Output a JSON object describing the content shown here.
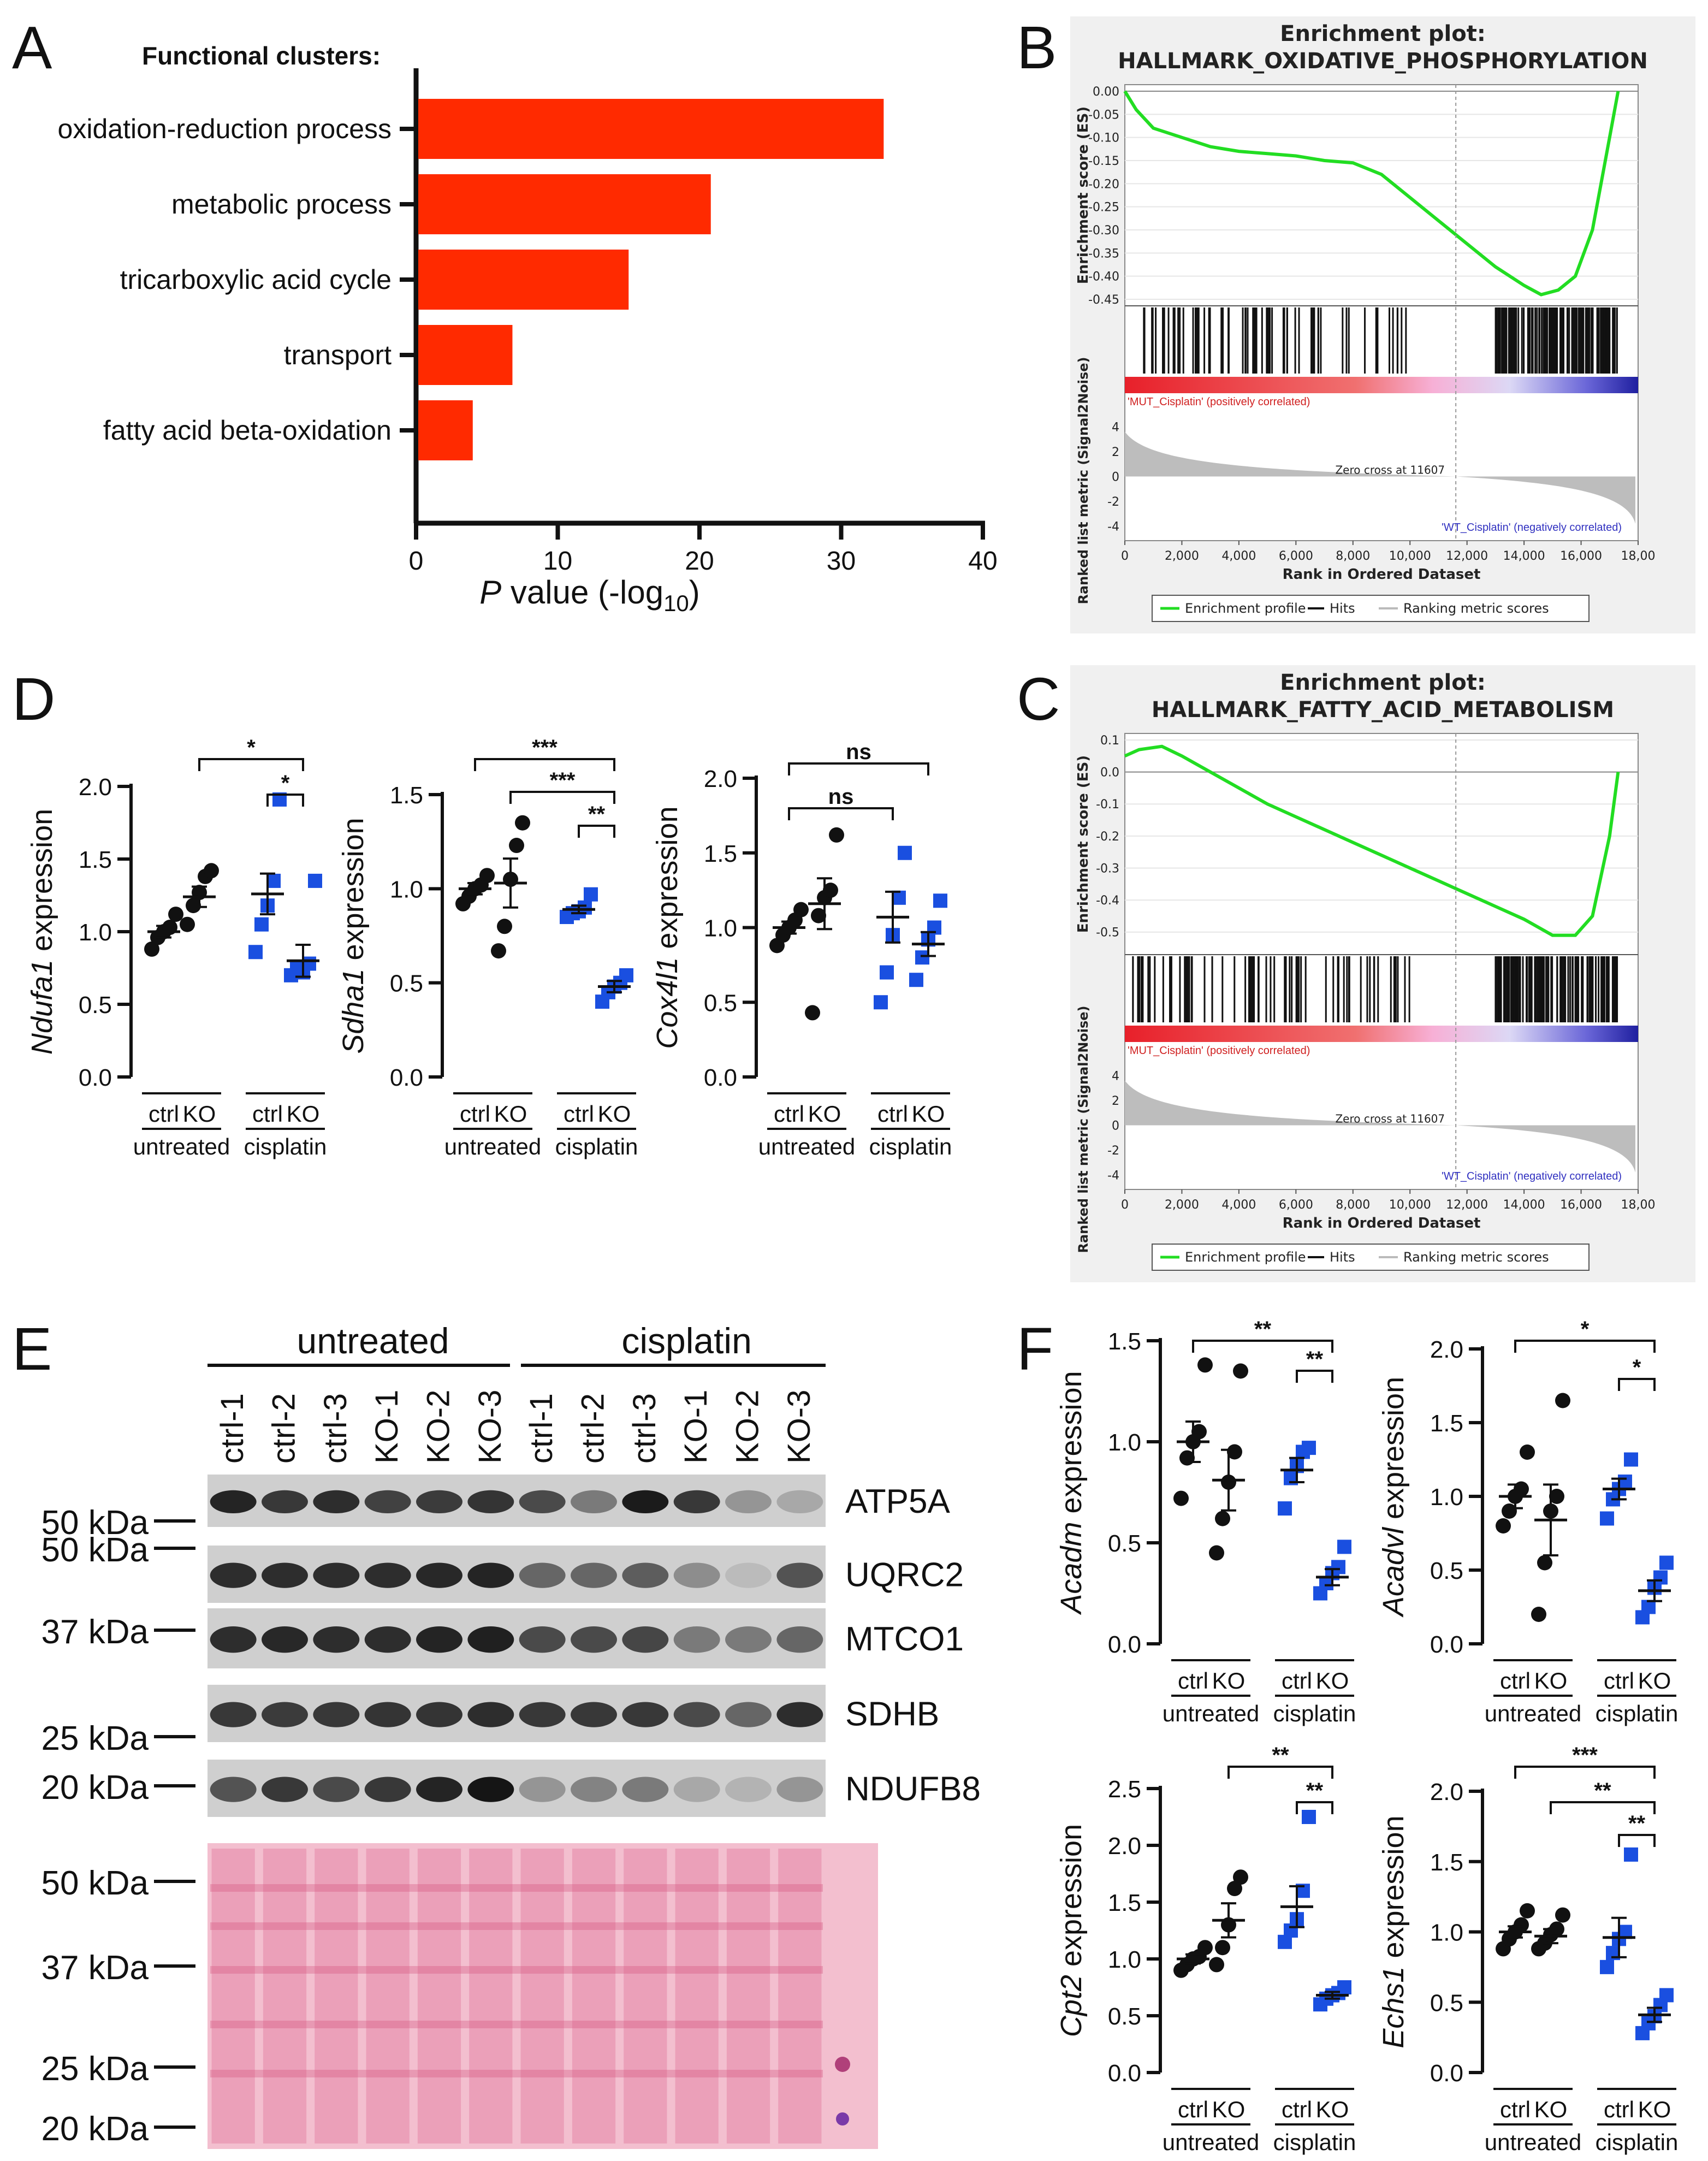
{
  "panels": {
    "a": "A",
    "b": "B",
    "c": "C",
    "d": "D",
    "e": "E",
    "f": "F"
  },
  "colors": {
    "bar": "#ff2a00",
    "ctrl": "#111111",
    "ko": "#1a4fe0",
    "gsea_curve": "#22dd22",
    "ponceau": "#f3bfcf"
  },
  "panel_a": {
    "header": "Functional clusters:",
    "xlabel_p": "P",
    "xlabel_rest": " value (-log",
    "xlabel_sub": "10",
    "xlabel_close": ")"
  },
  "panel_d": {
    "group_labels": [
      "ctrl",
      "KO",
      "ctrl",
      "KO"
    ],
    "treatments": [
      "untreated",
      "cisplatin"
    ]
  },
  "gsea": [
    {
      "title_line1": "Enrichment plot:",
      "title_line2": "HALLMARK_OXIDATIVE_PHOSPHORYLATION",
      "es_label": "Enrichment score (ES)",
      "metric_label": "Ranked list metric (Signal2Noise)",
      "rank_label": "Rank in Ordered Dataset",
      "pos_label": "'MUT_Cisplatin' (positively correlated)",
      "neg_label": "'WT_Cisplatin' (negatively correlated)",
      "zero_cross": "Zero cross at 11607",
      "legend": [
        "Enrichment profile",
        "Hits",
        "Ranking metric scores"
      ],
      "es_ticks": [
        "0.00",
        "-0.05",
        "-0.10",
        "-0.15",
        "-0.20",
        "-0.25",
        "-0.30",
        "-0.35",
        "-0.40",
        "-0.45"
      ],
      "metric_ticks": [
        "4",
        "2",
        "0",
        "-2",
        "-4"
      ],
      "rank_ticks": [
        "0",
        "2,000",
        "4,000",
        "6,000",
        "8,000",
        "10,000",
        "12,000",
        "14,000",
        "16,000",
        "18,00"
      ]
    },
    {
      "title_line1": "Enrichment plot:",
      "title_line2": "HALLMARK_FATTY_ACID_METABOLISM",
      "es_label": "Enrichment score (ES)",
      "metric_label": "Ranked list metric (Signal2Noise)",
      "rank_label": "Rank in Ordered Dataset",
      "pos_label": "'MUT_Cisplatin' (positively correlated)",
      "neg_label": "'WT_Cisplatin' (negatively correlated)",
      "zero_cross": "Zero cross at 11607",
      "legend": [
        "Enrichment profile",
        "Hits",
        "Ranking metric scores"
      ],
      "es_ticks": [
        "0.1",
        "0.0",
        "-0.1",
        "-0.2",
        "-0.3",
        "-0.4",
        "-0.5"
      ],
      "metric_ticks": [
        "4",
        "2",
        "0",
        "-2",
        "-4"
      ],
      "rank_ticks": [
        "0",
        "2,000",
        "4,000",
        "6,000",
        "8,000",
        "10,000",
        "12,000",
        "14,000",
        "16,000",
        "18,00"
      ]
    }
  ],
  "western": {
    "treatments": [
      "untreated",
      "cisplatin"
    ],
    "lanes": [
      "ctrl-1",
      "ctrl-2",
      "ctrl-3",
      "KO-1",
      "KO-2",
      "KO-3",
      "ctrl-1",
      "ctrl-2",
      "ctrl-3",
      "KO-1",
      "KO-2",
      "KO-3"
    ],
    "proteins": [
      "ATP5A",
      "UQRC2",
      "MTCO1",
      "SDHB",
      "NDUFB8"
    ],
    "blot_markers": [
      "50 kDa",
      "50 kDa",
      "37 kDa",
      "25 kDa",
      "20 kDa"
    ],
    "ponceau_markers": [
      "50 kDa",
      "37 kDa",
      "25 kDa",
      "20 kDa"
    ]
  },
  "chart_data": [
    {
      "id": "A",
      "type": "bar",
      "orientation": "horizontal",
      "title": "Functional clusters:",
      "categories": [
        "oxidation-reduction process",
        "metabolic process",
        "tricarboxylic acid cycle",
        "transport",
        "fatty acid beta-oxidation"
      ],
      "values": [
        33,
        20.8,
        15,
        6.8,
        4
      ],
      "xlabel": "P value (-log10)",
      "xlim": [
        0,
        40
      ],
      "xticks": [
        "0",
        "10",
        "20",
        "30",
        "40"
      ]
    },
    {
      "id": "B",
      "type": "line",
      "title": "Enrichment plot: HALLMARK_OXIDATIVE_PHOSPHORYLATION",
      "xlabel": "Rank in Ordered Dataset",
      "ylabel": "Enrichment score (ES)",
      "xlim": [
        0,
        18000
      ],
      "ylim": [
        -0.45,
        0.0
      ],
      "x": [
        0,
        400,
        1000,
        2000,
        3000,
        4000,
        5000,
        6000,
        7000,
        8000,
        9000,
        10000,
        11000,
        12000,
        13000,
        14000,
        14600,
        15200,
        15800,
        16400,
        17000,
        17300
      ],
      "y": [
        0.0,
        -0.04,
        -0.08,
        -0.1,
        -0.12,
        -0.13,
        -0.135,
        -0.14,
        -0.15,
        -0.155,
        -0.18,
        -0.23,
        -0.28,
        -0.33,
        -0.38,
        -0.42,
        -0.44,
        -0.43,
        -0.4,
        -0.3,
        -0.1,
        0.0
      ],
      "zero_cross": 11607
    },
    {
      "id": "C",
      "type": "line",
      "title": "Enrichment plot: HALLMARK_FATTY_ACID_METABOLISM",
      "xlabel": "Rank in Ordered Dataset",
      "ylabel": "Enrichment score (ES)",
      "xlim": [
        0,
        18000
      ],
      "ylim": [
        -0.55,
        0.1
      ],
      "x": [
        0,
        500,
        1300,
        2000,
        3000,
        4000,
        5000,
        6000,
        7000,
        8000,
        9000,
        10000,
        11000,
        12000,
        13000,
        14000,
        15000,
        15800,
        16400,
        17000,
        17300
      ],
      "y": [
        0.05,
        0.07,
        0.08,
        0.05,
        0.0,
        -0.05,
        -0.1,
        -0.14,
        -0.18,
        -0.22,
        -0.26,
        -0.3,
        -0.34,
        -0.38,
        -0.42,
        -0.46,
        -0.51,
        -0.51,
        -0.45,
        -0.2,
        0.0
      ],
      "zero_cross": 11607
    },
    {
      "id": "D1",
      "type": "scatter",
      "ylabel": "Ndufa1 expression",
      "ylim": [
        0,
        2.0
      ],
      "yticks": [
        "0.0",
        "0.5",
        "1.0",
        "1.5",
        "2.0"
      ],
      "groups": [
        {
          "label": "ctrl untreated",
          "points": [
            0.88,
            0.96,
            1.0,
            1.03,
            1.12
          ],
          "mean": 1.0,
          "sem": 0.04
        },
        {
          "label": "KO untreated",
          "points": [
            1.05,
            1.18,
            1.27,
            1.38,
            1.42
          ],
          "mean": 1.24,
          "sem": 0.07
        },
        {
          "label": "ctrl cisplatin",
          "points": [
            0.86,
            1.05,
            1.18,
            1.35,
            1.91
          ],
          "mean": 1.26,
          "sem": 0.14
        },
        {
          "label": "KO cisplatin",
          "points": [
            0.7,
            0.75,
            0.72,
            0.78,
            1.35
          ],
          "mean": 0.8,
          "sem": 0.11
        }
      ],
      "significance": [
        {
          "pair": "KO untreated vs KO cisplatin",
          "label": "*"
        },
        {
          "pair": "ctrl cisplatin vs KO cisplatin",
          "label": "*"
        }
      ]
    },
    {
      "id": "D2",
      "type": "scatter",
      "ylabel": "Sdha1 expression",
      "ylim": [
        0,
        1.5
      ],
      "yticks": [
        "0.0",
        "0.5",
        "1.0",
        "1.5"
      ],
      "groups": [
        {
          "label": "ctrl untreated",
          "points": [
            0.92,
            0.96,
            1.0,
            1.02,
            1.07
          ],
          "mean": 1.0,
          "sem": 0.03
        },
        {
          "label": "KO untreated",
          "points": [
            0.67,
            0.8,
            1.05,
            1.23,
            1.35
          ],
          "mean": 1.03,
          "sem": 0.13
        },
        {
          "label": "ctrl cisplatin",
          "points": [
            0.85,
            0.87,
            0.88,
            0.9,
            0.97
          ],
          "mean": 0.89,
          "sem": 0.02
        },
        {
          "label": "KO cisplatin",
          "points": [
            0.4,
            0.45,
            0.48,
            0.5,
            0.54
          ],
          "mean": 0.48,
          "sem": 0.03
        }
      ],
      "significance": [
        {
          "pair": "ctrl untreated vs KO cisplatin",
          "label": "***"
        },
        {
          "pair": "KO untreated vs KO cisplatin",
          "label": "***"
        },
        {
          "pair": "ctrl cisplatin vs KO cisplatin",
          "label": "**"
        }
      ]
    },
    {
      "id": "D3",
      "type": "scatter",
      "ylabel": "Cox4l1 expression",
      "ylim": [
        0,
        2.0
      ],
      "yticks": [
        "0.0",
        "0.5",
        "1.0",
        "1.5",
        "2.0"
      ],
      "groups": [
        {
          "label": "ctrl untreated",
          "points": [
            0.88,
            0.95,
            1.0,
            1.05,
            1.12
          ],
          "mean": 1.0,
          "sem": 0.04
        },
        {
          "label": "KO untreated",
          "points": [
            0.43,
            1.08,
            1.2,
            1.25,
            1.62
          ],
          "mean": 1.16,
          "sem": 0.17
        },
        {
          "label": "ctrl cisplatin",
          "points": [
            0.5,
            0.7,
            0.95,
            1.2,
            1.5
          ],
          "mean": 1.07,
          "sem": 0.17
        },
        {
          "label": "KO cisplatin",
          "points": [
            0.65,
            0.8,
            0.92,
            1.0,
            1.18
          ],
          "mean": 0.89,
          "sem": 0.08
        }
      ],
      "significance": [
        {
          "pair": "ctrl untreated vs KO cisplatin",
          "label": "ns"
        },
        {
          "pair": "ctrl untreated vs ctrl cisplatin",
          "label": "ns"
        }
      ]
    },
    {
      "id": "F1",
      "type": "scatter",
      "ylabel": "Acadm expression",
      "ylim": [
        0,
        1.5
      ],
      "yticks": [
        "0.0",
        "0.5",
        "1.0",
        "1.5"
      ],
      "groups": [
        {
          "label": "ctrl untreated",
          "points": [
            0.72,
            0.92,
            1.0,
            1.05,
            1.38
          ],
          "mean": 1.0,
          "sem": 0.1
        },
        {
          "label": "KO untreated",
          "points": [
            0.45,
            0.62,
            0.8,
            0.95,
            1.35
          ],
          "mean": 0.81,
          "sem": 0.15
        },
        {
          "label": "ctrl cisplatin",
          "points": [
            0.67,
            0.82,
            0.88,
            0.95,
            0.97
          ],
          "mean": 0.86,
          "sem": 0.06
        },
        {
          "label": "KO cisplatin",
          "points": [
            0.25,
            0.3,
            0.35,
            0.38,
            0.48
          ],
          "mean": 0.33,
          "sem": 0.04
        }
      ],
      "significance": [
        {
          "pair": "ctrl untreated vs KO cisplatin",
          "label": "**"
        },
        {
          "pair": "ctrl cisplatin vs KO cisplatin",
          "label": "**"
        }
      ]
    },
    {
      "id": "F2",
      "type": "scatter",
      "ylabel": "Acadvl expression",
      "ylim": [
        0,
        2.0
      ],
      "yticks": [
        "0.0",
        "0.5",
        "1.0",
        "1.5",
        "2.0"
      ],
      "groups": [
        {
          "label": "ctrl untreated",
          "points": [
            0.8,
            0.9,
            1.0,
            1.05,
            1.3
          ],
          "mean": 1.0,
          "sem": 0.08
        },
        {
          "label": "KO untreated",
          "points": [
            0.2,
            0.55,
            0.9,
            1.0,
            1.65
          ],
          "mean": 0.84,
          "sem": 0.24
        },
        {
          "label": "ctrl cisplatin",
          "points": [
            0.85,
            0.98,
            1.05,
            1.1,
            1.25
          ],
          "mean": 1.05,
          "sem": 0.07
        },
        {
          "label": "KO cisplatin",
          "points": [
            0.18,
            0.25,
            0.38,
            0.45,
            0.55
          ],
          "mean": 0.36,
          "sem": 0.07
        }
      ],
      "significance": [
        {
          "pair": "ctrl untreated vs KO cisplatin",
          "label": "*"
        },
        {
          "pair": "ctrl cisplatin vs KO cisplatin",
          "label": "*"
        }
      ]
    },
    {
      "id": "F3",
      "type": "scatter",
      "ylabel": "Cpt2 expression",
      "ylim": [
        0,
        2.5
      ],
      "yticks": [
        "0.0",
        "0.5",
        "1.0",
        "1.5",
        "2.0",
        "2.5"
      ],
      "groups": [
        {
          "label": "ctrl untreated",
          "points": [
            0.9,
            0.95,
            1.0,
            1.02,
            1.1
          ],
          "mean": 1.0,
          "sem": 0.04
        },
        {
          "label": "KO untreated",
          "points": [
            0.95,
            1.1,
            1.3,
            1.62,
            1.72
          ],
          "mean": 1.34,
          "sem": 0.15
        },
        {
          "label": "ctrl cisplatin",
          "points": [
            1.15,
            1.25,
            1.35,
            1.6,
            2.25
          ],
          "mean": 1.46,
          "sem": 0.18
        },
        {
          "label": "KO cisplatin",
          "points": [
            0.6,
            0.65,
            0.68,
            0.7,
            0.75
          ],
          "mean": 0.68,
          "sem": 0.03
        }
      ],
      "significance": [
        {
          "pair": "KO untreated vs KO cisplatin",
          "label": "**"
        },
        {
          "pair": "ctrl cisplatin vs KO cisplatin",
          "label": "**"
        }
      ]
    },
    {
      "id": "F4",
      "type": "scatter",
      "ylabel": "Echs1 expression",
      "ylim": [
        0,
        2.0
      ],
      "yticks": [
        "0.0",
        "0.5",
        "1.0",
        "1.5",
        "2.0"
      ],
      "groups": [
        {
          "label": "ctrl untreated",
          "points": [
            0.88,
            0.95,
            1.0,
            1.05,
            1.15
          ],
          "mean": 1.0,
          "sem": 0.04
        },
        {
          "label": "KO untreated",
          "points": [
            0.88,
            0.92,
            0.98,
            1.02,
            1.12
          ],
          "mean": 0.97,
          "sem": 0.05
        },
        {
          "label": "ctrl cisplatin",
          "points": [
            0.75,
            0.85,
            0.95,
            1.0,
            1.55
          ],
          "mean": 0.96,
          "sem": 0.14
        },
        {
          "label": "KO cisplatin",
          "points": [
            0.28,
            0.35,
            0.4,
            0.48,
            0.55
          ],
          "mean": 0.41,
          "sem": 0.05
        }
      ],
      "significance": [
        {
          "pair": "ctrl untreated vs KO cisplatin",
          "label": "***"
        },
        {
          "pair": "KO untreated vs KO cisplatin",
          "label": "**"
        },
        {
          "pair": "ctrl cisplatin vs KO cisplatin",
          "label": "**"
        }
      ]
    }
  ]
}
